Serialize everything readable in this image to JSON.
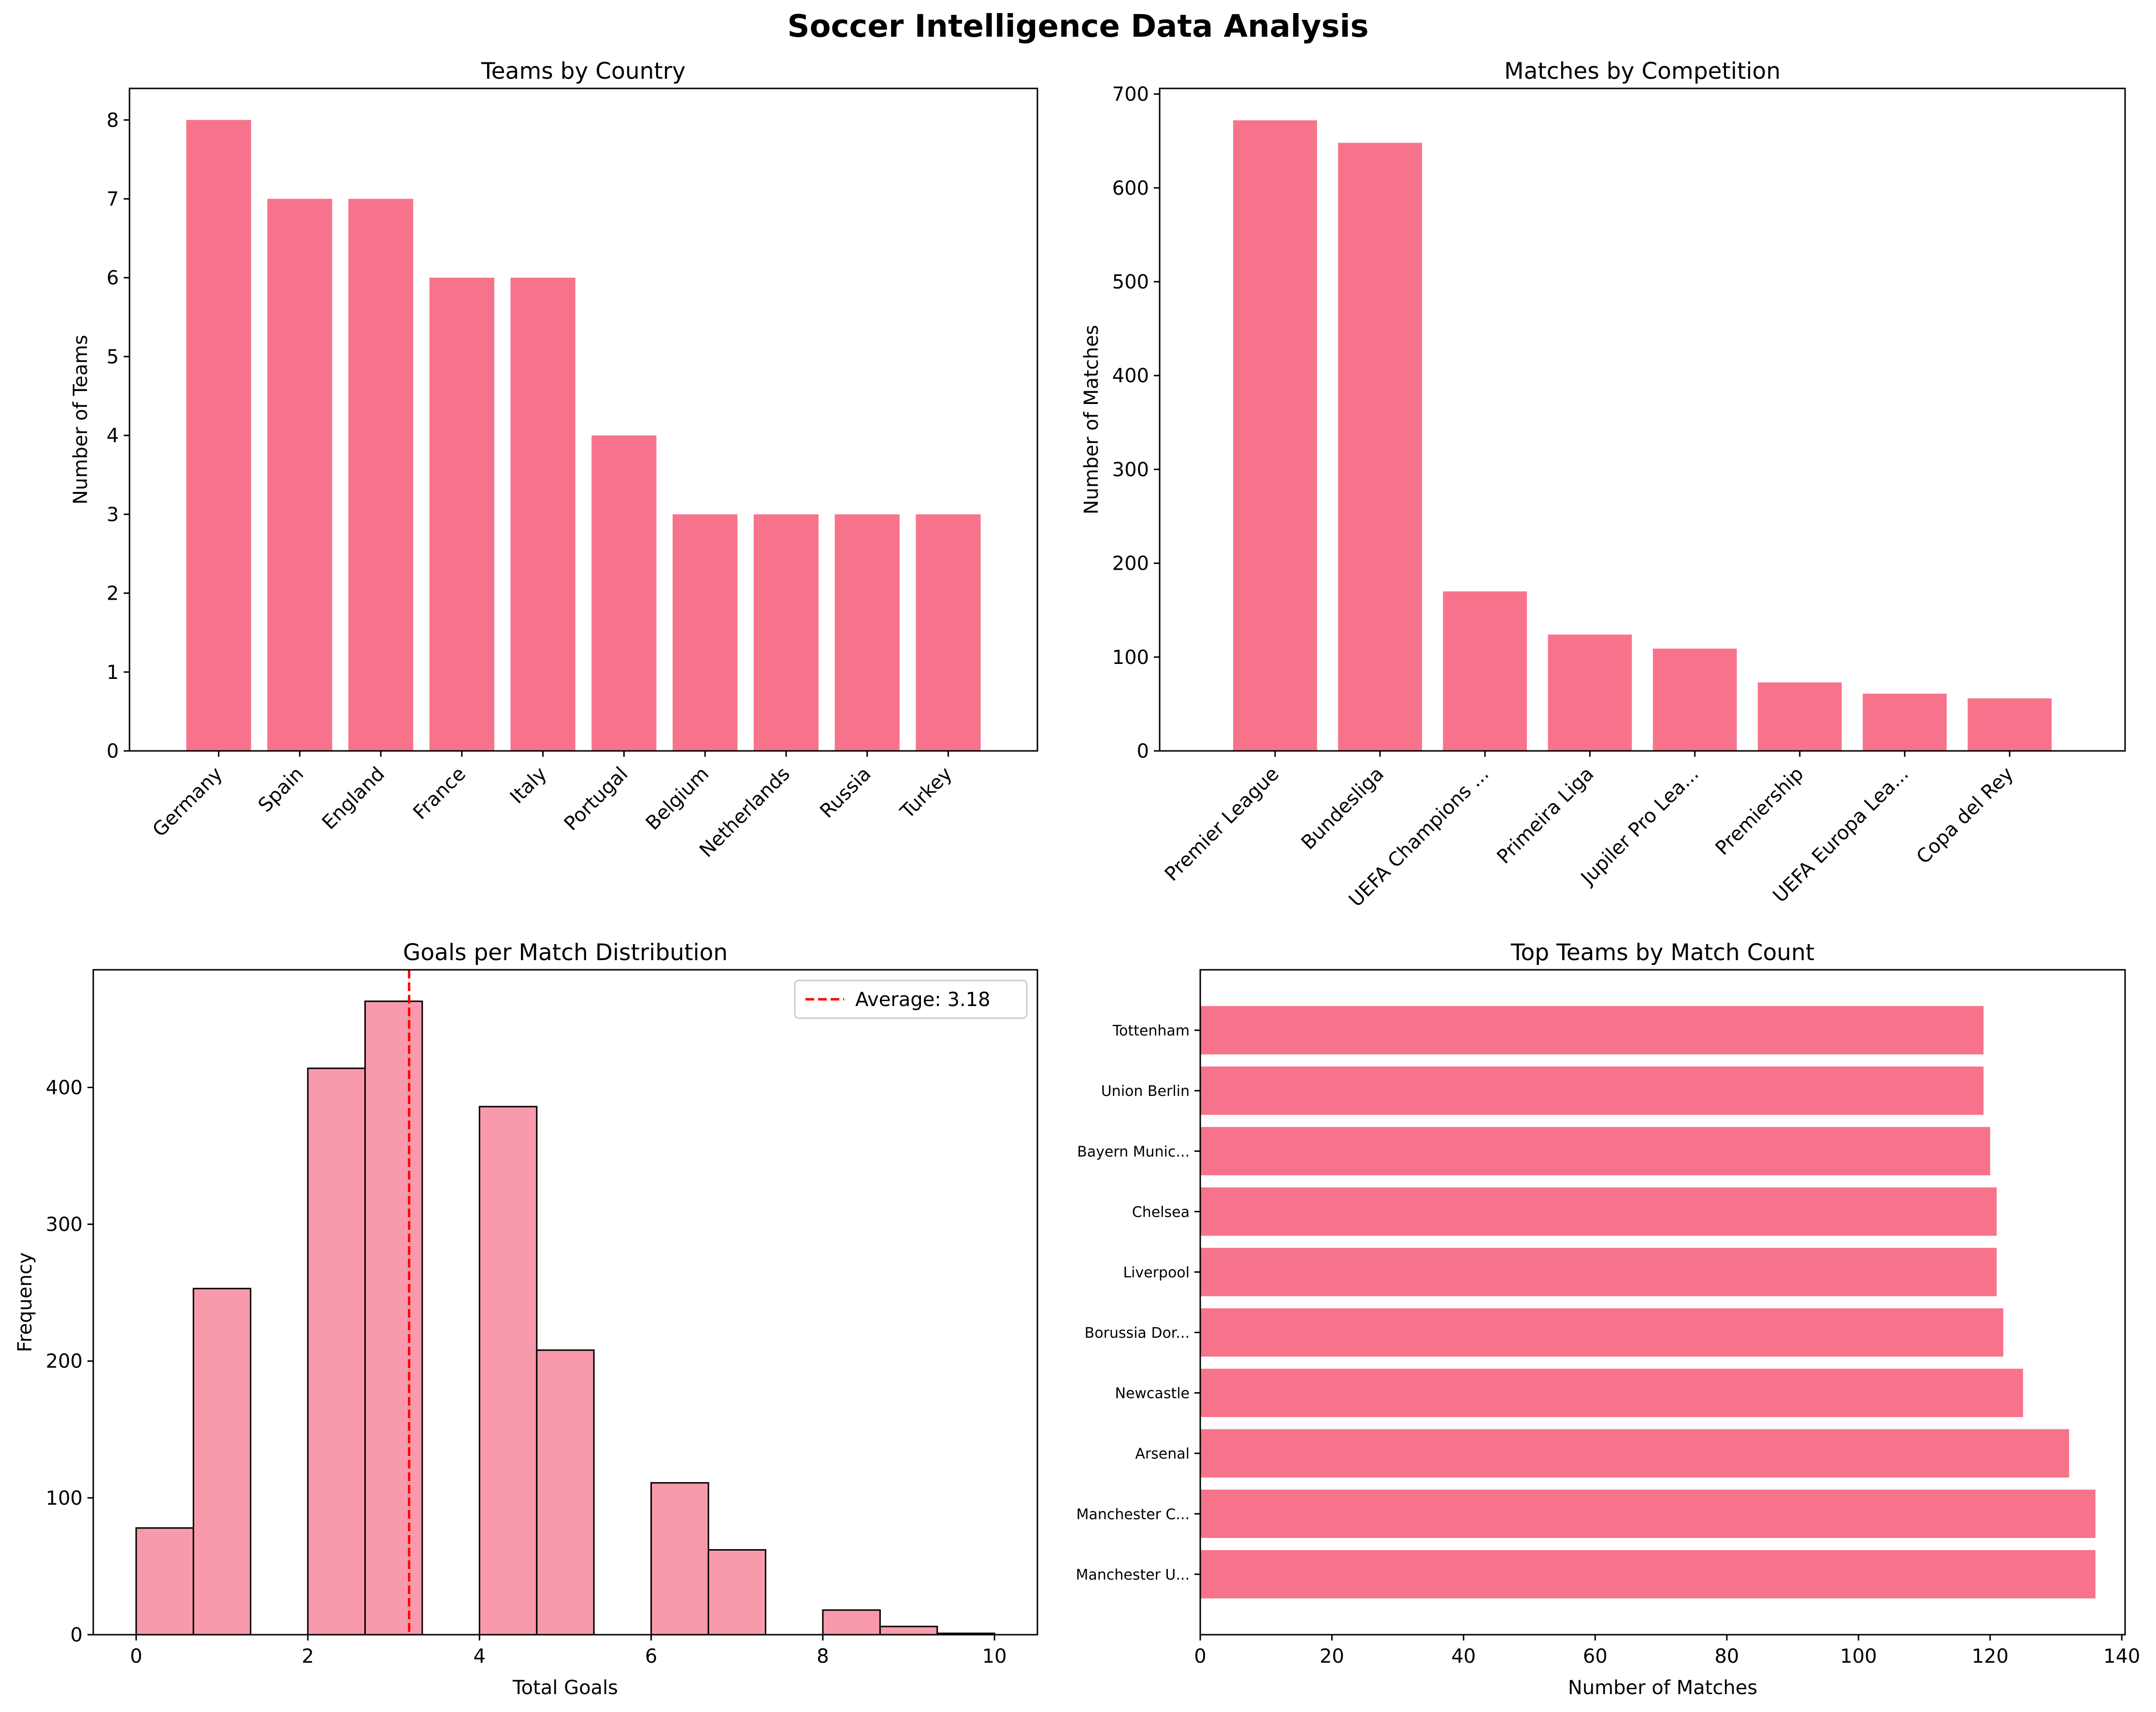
{
  "figure": {
    "title": "Soccer Intelligence Data Analysis"
  },
  "colors": {
    "bar": "#f7738b",
    "hist_bar": "#f89aab",
    "edge": "#000000",
    "avg_line": "#ff0000"
  },
  "chart_data": [
    {
      "type": "bar",
      "title": "Teams by Country",
      "xlabel": "",
      "ylabel": "Number of Teams",
      "categories": [
        "Germany",
        "Spain",
        "England",
        "France",
        "Italy",
        "Portugal",
        "Belgium",
        "Netherlands",
        "Russia",
        "Turkey"
      ],
      "values": [
        8,
        7,
        7,
        6,
        6,
        4,
        3,
        3,
        3,
        3
      ],
      "ylim": [
        0,
        8.4
      ],
      "yticks": [
        0,
        1,
        2,
        3,
        4,
        5,
        6,
        7,
        8
      ],
      "grid": false
    },
    {
      "type": "bar",
      "title": "Matches by Competition",
      "xlabel": "",
      "ylabel": "Number of Matches",
      "categories": [
        "Premier League",
        "Bundesliga",
        "UEFA Champions ...",
        "Primeira Liga",
        "Jupiler Pro Lea...",
        "Premiership",
        "UEFA Europa Lea...",
        "Copa del Rey"
      ],
      "values": [
        672,
        648,
        170,
        124,
        109,
        73,
        61,
        56
      ],
      "ylim": [
        0,
        706
      ],
      "yticks": [
        0,
        100,
        200,
        300,
        400,
        500,
        600,
        700
      ],
      "grid": false
    },
    {
      "type": "histogram",
      "title": "Goals per Match Distribution",
      "xlabel": "Total Goals",
      "ylabel": "Frequency",
      "bin_edges": [
        0,
        0.667,
        1.333,
        2,
        2.667,
        3.333,
        4,
        4.667,
        5.333,
        6,
        6.667,
        7.333,
        8,
        8.667,
        9.333,
        10
      ],
      "counts": [
        78,
        253,
        0,
        414,
        463,
        0,
        386,
        208,
        0,
        111,
        62,
        0,
        18,
        6,
        1
      ],
      "average": 3.18,
      "legend": {
        "label": "Average: 3.18",
        "placement": "upper right"
      },
      "xlim": [
        -0.5,
        10.5
      ],
      "ylim": [
        0,
        486
      ],
      "xticks": [
        0,
        2,
        4,
        6,
        8,
        10
      ],
      "yticks": [
        0,
        100,
        200,
        300,
        400
      ],
      "grid": false
    },
    {
      "type": "barh",
      "title": "Top Teams by Match Count",
      "xlabel": "Number of Matches",
      "ylabel": "",
      "categories": [
        "Manchester U...",
        "Manchester C...",
        "Arsenal",
        "Newcastle",
        "Borussia Dor...",
        "Liverpool",
        "Chelsea",
        "Bayern Munic...",
        "Union Berlin",
        "Tottenham"
      ],
      "values": [
        136,
        136,
        132,
        125,
        122,
        121,
        121,
        120,
        119,
        119
      ],
      "xlim": [
        0,
        140.5
      ],
      "xticks": [
        0,
        20,
        40,
        60,
        80,
        100,
        120,
        140
      ],
      "grid": false
    }
  ]
}
